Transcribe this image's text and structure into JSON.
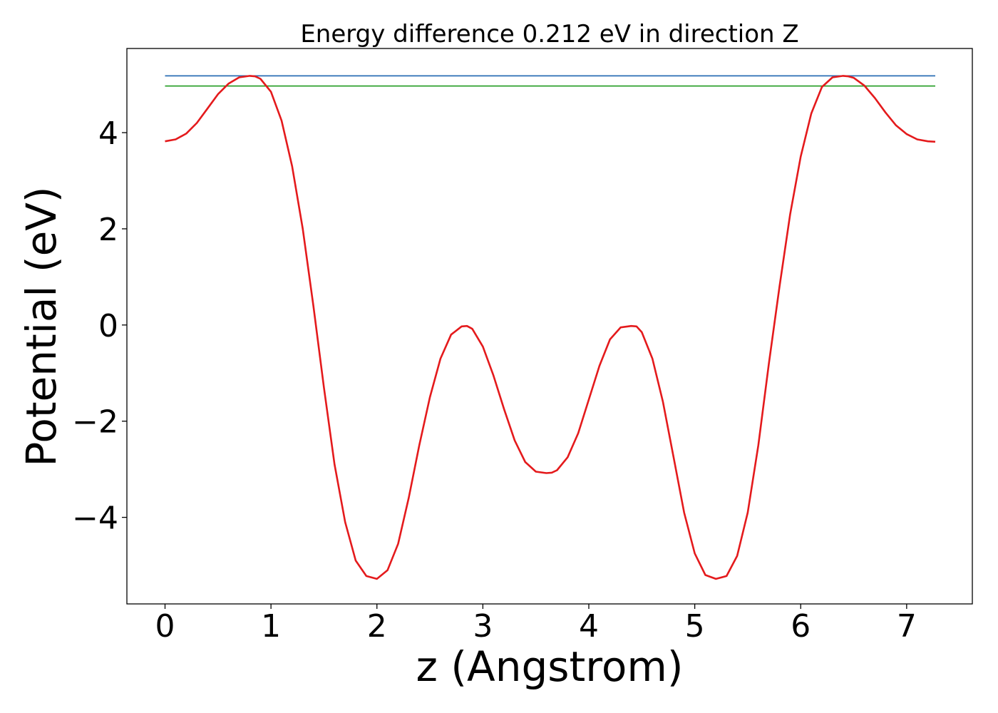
{
  "chart_data": {
    "type": "line",
    "title": "Energy difference 0.212 eV in direction Z",
    "xlabel": "z (Angstrom)",
    "ylabel": "Potential (eV)",
    "xlim": [
      -0.36,
      7.62
    ],
    "ylim": [
      -5.8,
      5.75
    ],
    "x_ticks": [
      0,
      1,
      2,
      3,
      4,
      5,
      6,
      7
    ],
    "x_tick_labels": [
      "0",
      "1",
      "2",
      "3",
      "4",
      "5",
      "6",
      "7"
    ],
    "y_ticks": [
      -4,
      -2,
      0,
      2,
      4
    ],
    "y_tick_labels": [
      "−4",
      "−2",
      "0",
      "2",
      "4"
    ],
    "grid": false,
    "legend": "none",
    "series": [
      {
        "color": "#e41a1c",
        "x": [
          0,
          0.1,
          0.2,
          0.3,
          0.4,
          0.5,
          0.6,
          0.7,
          0.8,
          0.85,
          0.9,
          1.0,
          1.1,
          1.2,
          1.3,
          1.4,
          1.5,
          1.6,
          1.7,
          1.8,
          1.9,
          2.0,
          2.1,
          2.2,
          2.3,
          2.4,
          2.5,
          2.6,
          2.7,
          2.8,
          2.85,
          2.9,
          3.0,
          3.1,
          3.2,
          3.3,
          3.4,
          3.5,
          3.6,
          3.65,
          3.7,
          3.8,
          3.9,
          4.0,
          4.1,
          4.2,
          4.3,
          4.4,
          4.45,
          4.5,
          4.6,
          4.7,
          4.8,
          4.9,
          5.0,
          5.1,
          5.2,
          5.3,
          5.4,
          5.5,
          5.6,
          5.7,
          5.8,
          5.9,
          6.0,
          6.1,
          6.2,
          6.3,
          6.4,
          6.45,
          6.5,
          6.6,
          6.7,
          6.8,
          6.9,
          7.0,
          7.1,
          7.2,
          7.27
        ],
        "y": [
          3.82,
          3.86,
          3.98,
          4.2,
          4.5,
          4.8,
          5.02,
          5.15,
          5.18,
          5.17,
          5.12,
          4.85,
          4.25,
          3.3,
          2.0,
          0.4,
          -1.3,
          -2.9,
          -4.1,
          -4.9,
          -5.22,
          -5.28,
          -5.1,
          -4.55,
          -3.6,
          -2.5,
          -1.5,
          -0.7,
          -0.2,
          -0.03,
          -0.02,
          -0.08,
          -0.45,
          -1.05,
          -1.75,
          -2.4,
          -2.85,
          -3.05,
          -3.08,
          -3.07,
          -3.02,
          -2.75,
          -2.25,
          -1.55,
          -0.85,
          -0.3,
          -0.05,
          -0.02,
          -0.03,
          -0.15,
          -0.7,
          -1.6,
          -2.75,
          -3.9,
          -4.75,
          -5.2,
          -5.28,
          -5.22,
          -4.8,
          -3.9,
          -2.5,
          -0.8,
          0.8,
          2.3,
          3.5,
          4.4,
          4.95,
          5.15,
          5.18,
          5.17,
          5.14,
          4.98,
          4.72,
          4.42,
          4.15,
          3.97,
          3.86,
          3.82,
          3.81
        ]
      },
      {
        "color": "#2b6fb5",
        "x": [
          0,
          7.27
        ],
        "y": [
          5.18,
          5.18
        ]
      },
      {
        "color": "#2ca02c",
        "x": [
          0,
          7.27
        ],
        "y": [
          4.97,
          4.97
        ]
      }
    ]
  }
}
